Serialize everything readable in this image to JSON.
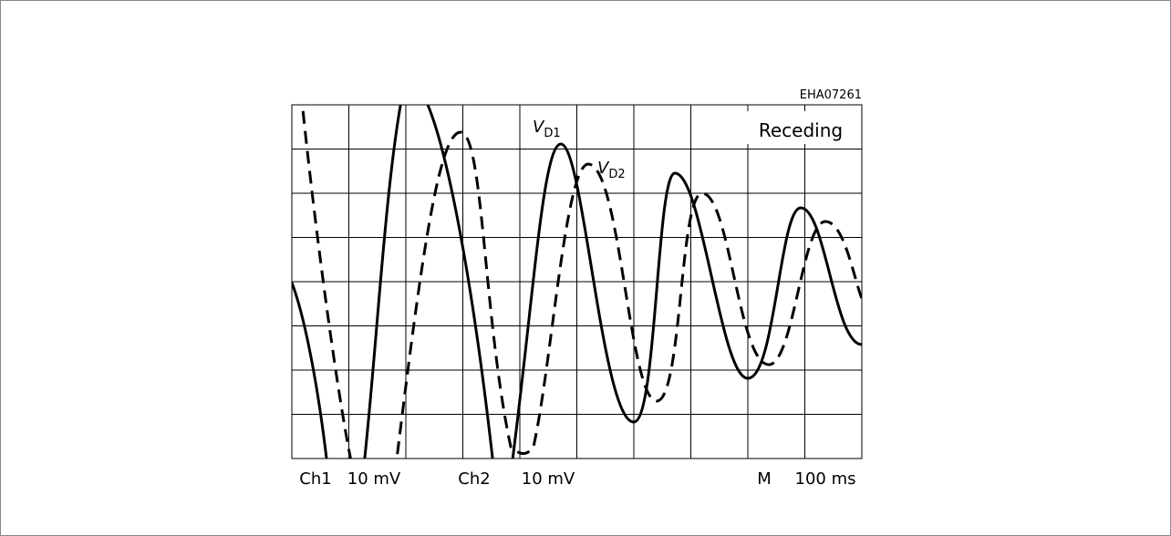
{
  "code": "EHA07261",
  "mode": "Receding",
  "traces": [
    {
      "symbol": "V",
      "subscript": "D1"
    },
    {
      "symbol": "V",
      "subscript": "D2"
    }
  ],
  "settings": [
    {
      "channel": "Ch1",
      "scale": "10 mV"
    },
    {
      "channel": "Ch2",
      "scale": "10 mV"
    },
    {
      "channel": "M",
      "scale": "100 ms"
    }
  ]
}
